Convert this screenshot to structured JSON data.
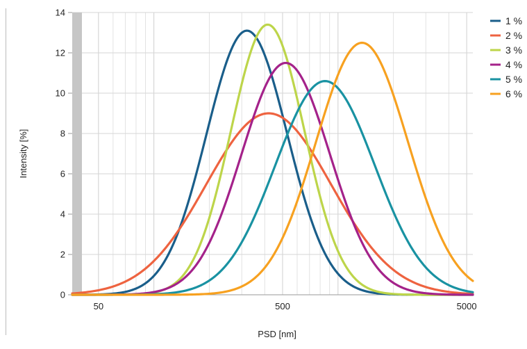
{
  "chart_data": {
    "type": "line",
    "title": "",
    "xlabel": "PSD [nm]",
    "ylabel": "Intensity [%]",
    "x_scale": "log",
    "xlim": [
      36,
      5400
    ],
    "ylim": [
      0,
      14
    ],
    "x_ticks": [
      50,
      500,
      5000
    ],
    "y_ticks": [
      0,
      2,
      4,
      6,
      8,
      10,
      12,
      14
    ],
    "grid": true,
    "legend_position": "right",
    "series": [
      {
        "name": "1 %",
        "color": "#1a5e8a",
        "peak_x": 320,
        "peak_y": 13.1,
        "width_log10": 0.22
      },
      {
        "name": "2 %",
        "color": "#ee6340",
        "peak_x": 420,
        "peak_y": 9.0,
        "width_log10": 0.34
      },
      {
        "name": "3 %",
        "color": "#bdd54a",
        "peak_x": 415,
        "peak_y": 13.4,
        "width_log10": 0.2
      },
      {
        "name": "4 %",
        "color": "#a4228a",
        "peak_x": 520,
        "peak_y": 11.5,
        "width_log10": 0.24
      },
      {
        "name": "5 %",
        "color": "#1992a2",
        "peak_x": 850,
        "peak_y": 10.6,
        "width_log10": 0.27
      },
      {
        "name": "6 %",
        "color": "#f7a120",
        "peak_x": 1350,
        "peak_y": 12.5,
        "width_log10": 0.25
      }
    ]
  }
}
